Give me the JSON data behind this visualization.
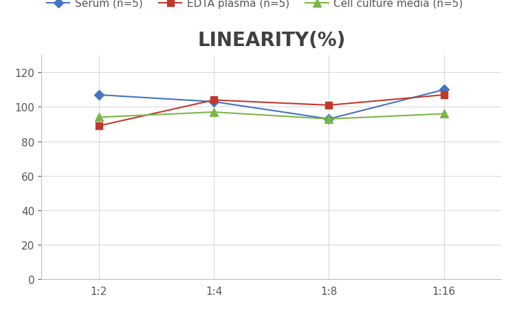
{
  "title": "LINEARITY(%)",
  "x_labels": [
    "1:2",
    "1:4",
    "1:8",
    "1:16"
  ],
  "x_positions": [
    0,
    1,
    2,
    3
  ],
  "series": [
    {
      "label": "Serum (n=5)",
      "values": [
        107,
        103,
        93,
        110
      ],
      "color": "#4472C4",
      "marker": "D",
      "marker_size": 7,
      "linestyle": "-"
    },
    {
      "label": "EDTA plasma (n=5)",
      "values": [
        89,
        104,
        101,
        107
      ],
      "color": "#C0392B",
      "marker": "s",
      "marker_size": 7,
      "linestyle": "-"
    },
    {
      "label": "Cell culture media (n=5)",
      "values": [
        94,
        97,
        93,
        96
      ],
      "color": "#7AB648",
      "marker": "^",
      "marker_size": 8,
      "linestyle": "-"
    }
  ],
  "ylim": [
    0,
    130
  ],
  "yticks": [
    0,
    20,
    40,
    60,
    80,
    100,
    120
  ],
  "background_color": "#ffffff",
  "grid_color": "#d9d9d9",
  "title_fontsize": 20,
  "legend_fontsize": 11,
  "tick_fontsize": 11,
  "title_color": "#404040"
}
